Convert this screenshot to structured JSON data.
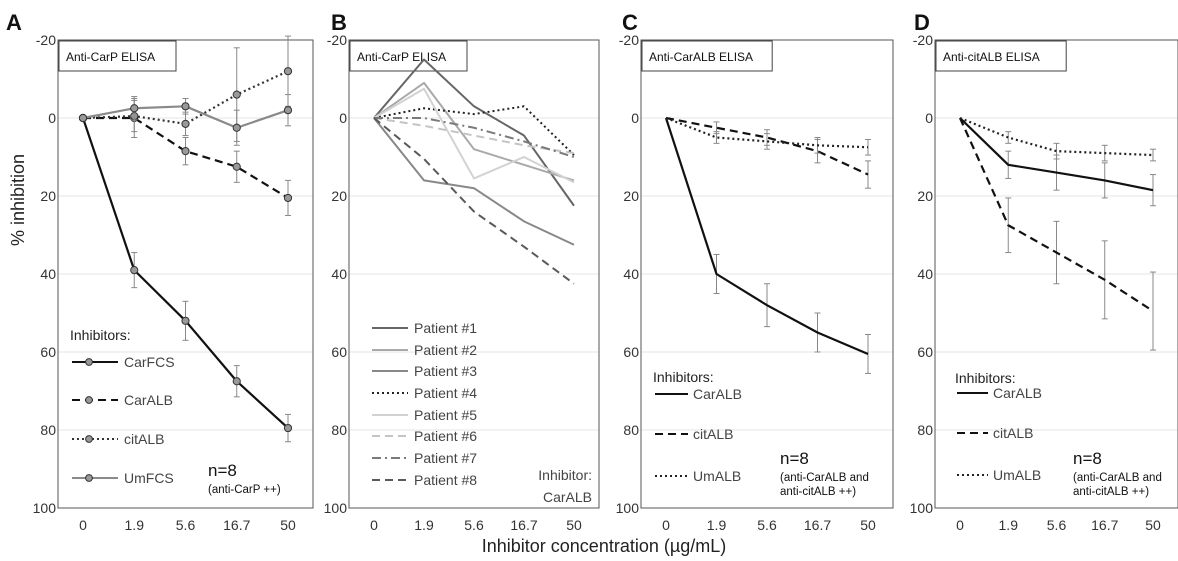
{
  "shared": {
    "ylabel": "% inhibition",
    "xlabel": "Inhibitor concentration (µg/mL)",
    "x_categories": [
      "0",
      "1.9",
      "5.6",
      "16.7",
      "50"
    ],
    "y_ticks": [
      "-20",
      "0",
      "20",
      "40",
      "60",
      "80",
      "100"
    ]
  },
  "chart_data": [
    {
      "type": "line",
      "panel": "A",
      "title": "Anti-CarP ELISA",
      "ylim": [
        100,
        -20
      ],
      "categories": [
        "0",
        "1.9",
        "5.6",
        "16.7",
        "50"
      ],
      "legend_title": "Inhibitors:",
      "series": [
        {
          "name": "CarFCS",
          "style": "solid-marker",
          "color": "#111111",
          "values": [
            0,
            39,
            52,
            67.5,
            79.5
          ],
          "errors": [
            0,
            4.5,
            5,
            4,
            3.5
          ]
        },
        {
          "name": "CarALB",
          "style": "dashed-marker",
          "color": "#111111",
          "values": [
            0,
            0,
            8.5,
            12.5,
            20.5
          ],
          "errors": [
            0,
            5,
            3.5,
            4,
            4.5
          ]
        },
        {
          "name": "citALB",
          "style": "dotted-marker",
          "color": "#333333",
          "values": [
            0,
            -0.5,
            1.5,
            -6,
            -12
          ],
          "errors": [
            0,
            4,
            3,
            12,
            9
          ]
        },
        {
          "name": "UmFCS",
          "style": "solid-marker",
          "color": "#8a8a8a",
          "values": [
            0,
            -2.5,
            -3,
            2.5,
            -2
          ],
          "errors": [
            0,
            3,
            2,
            4.5,
            4
          ]
        }
      ],
      "annotation": {
        "n": "n=8",
        "sub": [
          "(anti-CarP ++)"
        ]
      }
    },
    {
      "type": "line",
      "panel": "B",
      "title": "Anti-CarP ELISA",
      "ylim": [
        100,
        -20
      ],
      "categories": [
        "0",
        "1.9",
        "5.6",
        "16.7",
        "50"
      ],
      "series": [
        {
          "name": "Patient #1",
          "style": "solid",
          "color": "#666666",
          "values": [
            0,
            -15,
            -3,
            4.5,
            22.5
          ]
        },
        {
          "name": "Patient #2",
          "style": "solid",
          "color": "#a9a9a9",
          "values": [
            0,
            -9,
            8,
            12,
            16
          ]
        },
        {
          "name": "Patient #3",
          "style": "solid",
          "color": "#888888",
          "values": [
            0,
            16,
            18,
            26.5,
            32.5
          ]
        },
        {
          "name": "Patient #4",
          "style": "dotted",
          "color": "#222222",
          "values": [
            0,
            -2.5,
            -1,
            -3,
            9.5
          ]
        },
        {
          "name": "Patient #5",
          "style": "solid",
          "color": "#d2d2d2",
          "values": [
            0,
            -7.5,
            15.5,
            10,
            16.5
          ]
        },
        {
          "name": "Patient #6",
          "style": "dashed",
          "color": "#c4c4c4",
          "values": [
            0,
            2,
            4.5,
            7,
            9
          ]
        },
        {
          "name": "Patient #7",
          "style": "dashdot",
          "color": "#7a7a7a",
          "values": [
            0,
            0,
            2.5,
            6,
            10
          ]
        },
        {
          "name": "Patient #8",
          "style": "dashed",
          "color": "#5a5a5a",
          "values": [
            0,
            10.5,
            24,
            33,
            42.5
          ]
        }
      ],
      "annotation": {
        "n": "Inhibitor:",
        "sub": [
          "CarALB"
        ]
      }
    },
    {
      "type": "line",
      "panel": "C",
      "title": "Anti-CarALB ELISA",
      "ylim": [
        100,
        -20
      ],
      "categories": [
        "0",
        "1.9",
        "5.6",
        "16.7",
        "50"
      ],
      "legend_title": "Inhibitors:",
      "series": [
        {
          "name": "CarALB",
          "style": "solid",
          "color": "#111111",
          "values": [
            0,
            40,
            48,
            55,
            60.5
          ],
          "errors": [
            0,
            5,
            5.5,
            5,
            5
          ]
        },
        {
          "name": "citALB",
          "style": "dashed",
          "color": "#111111",
          "values": [
            0,
            2.5,
            5,
            8.5,
            14.5
          ],
          "errors": [
            0,
            1.5,
            2,
            3,
            3.5
          ]
        },
        {
          "name": "UmALB",
          "style": "dotted",
          "color": "#222222",
          "values": [
            0,
            5,
            6,
            7,
            7.5
          ],
          "errors": [
            0,
            1.5,
            2,
            2,
            2
          ]
        }
      ],
      "annotation": {
        "n": "n=8",
        "sub": [
          "(anti-CarALB and",
          "anti-citALB ++)"
        ]
      }
    },
    {
      "type": "line",
      "panel": "D",
      "title": "Anti-citALB ELISA",
      "ylim": [
        100,
        -20
      ],
      "categories": [
        "0",
        "1.9",
        "5.6",
        "16.7",
        "50"
      ],
      "legend_title": "Inhibitors:",
      "series": [
        {
          "name": "CarALB",
          "style": "solid",
          "color": "#111111",
          "values": [
            0,
            12,
            14,
            16,
            18.5
          ],
          "errors": [
            0,
            3.5,
            4.5,
            4.5,
            4
          ]
        },
        {
          "name": "citALB",
          "style": "dashed",
          "color": "#111111",
          "values": [
            0,
            27.5,
            34.5,
            41.5,
            49.5
          ],
          "errors": [
            0,
            7,
            8,
            10,
            10
          ]
        },
        {
          "name": "UmALB",
          "style": "dotted",
          "color": "#222222",
          "values": [
            0,
            5,
            8.5,
            9,
            9.5
          ],
          "errors": [
            0,
            1.5,
            2,
            2,
            1.5
          ]
        }
      ],
      "annotation": {
        "n": "n=8",
        "sub": [
          "(anti-CarALB and",
          "anti-citALB ++)"
        ]
      }
    }
  ]
}
